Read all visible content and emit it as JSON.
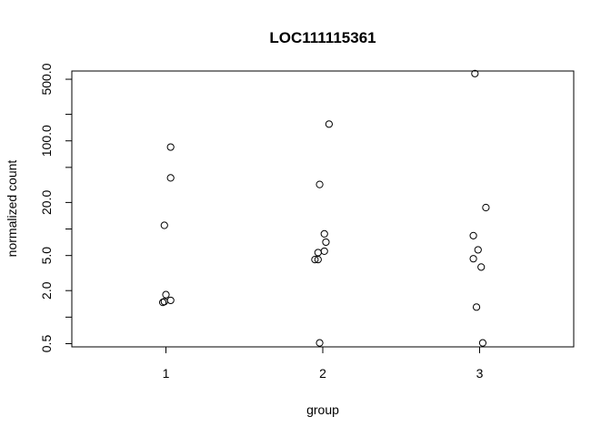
{
  "chart_data": {
    "type": "scatter",
    "title": "LOC111115361",
    "xlabel": "group",
    "ylabel": "normalized count",
    "y_scale": "log",
    "x_ticks": [
      {
        "value": 1,
        "label": "1"
      },
      {
        "value": 2,
        "label": "2"
      },
      {
        "value": 3,
        "label": "3"
      }
    ],
    "y_ticks": [
      {
        "value": 0.5,
        "label": "0.5"
      },
      {
        "value": 1,
        "label": ""
      },
      {
        "value": 2,
        "label": "2.0"
      },
      {
        "value": 5,
        "label": "5.0"
      },
      {
        "value": 10,
        "label": ""
      },
      {
        "value": 20,
        "label": "20.0"
      },
      {
        "value": 50,
        "label": ""
      },
      {
        "value": 100,
        "label": "100.0"
      },
      {
        "value": 200,
        "label": ""
      },
      {
        "value": 500,
        "label": "500.0"
      }
    ],
    "xlim": [
      0.4,
      3.6
    ],
    "ylim": [
      0.46,
      620
    ],
    "grid": false,
    "points": [
      {
        "x": 1.03,
        "y": 85
      },
      {
        "x": 1.03,
        "y": 38
      },
      {
        "x": 0.99,
        "y": 11
      },
      {
        "x": 1.0,
        "y": 1.8
      },
      {
        "x": 0.99,
        "y": 1.5
      },
      {
        "x": 1.03,
        "y": 1.55
      },
      {
        "x": 0.98,
        "y": 1.47
      },
      {
        "x": 2.04,
        "y": 155
      },
      {
        "x": 1.98,
        "y": 32
      },
      {
        "x": 2.01,
        "y": 8.8
      },
      {
        "x": 2.02,
        "y": 7.1
      },
      {
        "x": 2.01,
        "y": 5.6
      },
      {
        "x": 1.97,
        "y": 5.4
      },
      {
        "x": 1.95,
        "y": 4.5
      },
      {
        "x": 1.97,
        "y": 4.5
      },
      {
        "x": 1.98,
        "y": 0.51
      },
      {
        "x": 2.97,
        "y": 580
      },
      {
        "x": 3.04,
        "y": 17.5
      },
      {
        "x": 2.96,
        "y": 8.4
      },
      {
        "x": 2.99,
        "y": 5.8
      },
      {
        "x": 2.96,
        "y": 4.6
      },
      {
        "x": 3.01,
        "y": 3.7
      },
      {
        "x": 2.98,
        "y": 1.3
      },
      {
        "x": 3.02,
        "y": 0.51
      }
    ]
  }
}
